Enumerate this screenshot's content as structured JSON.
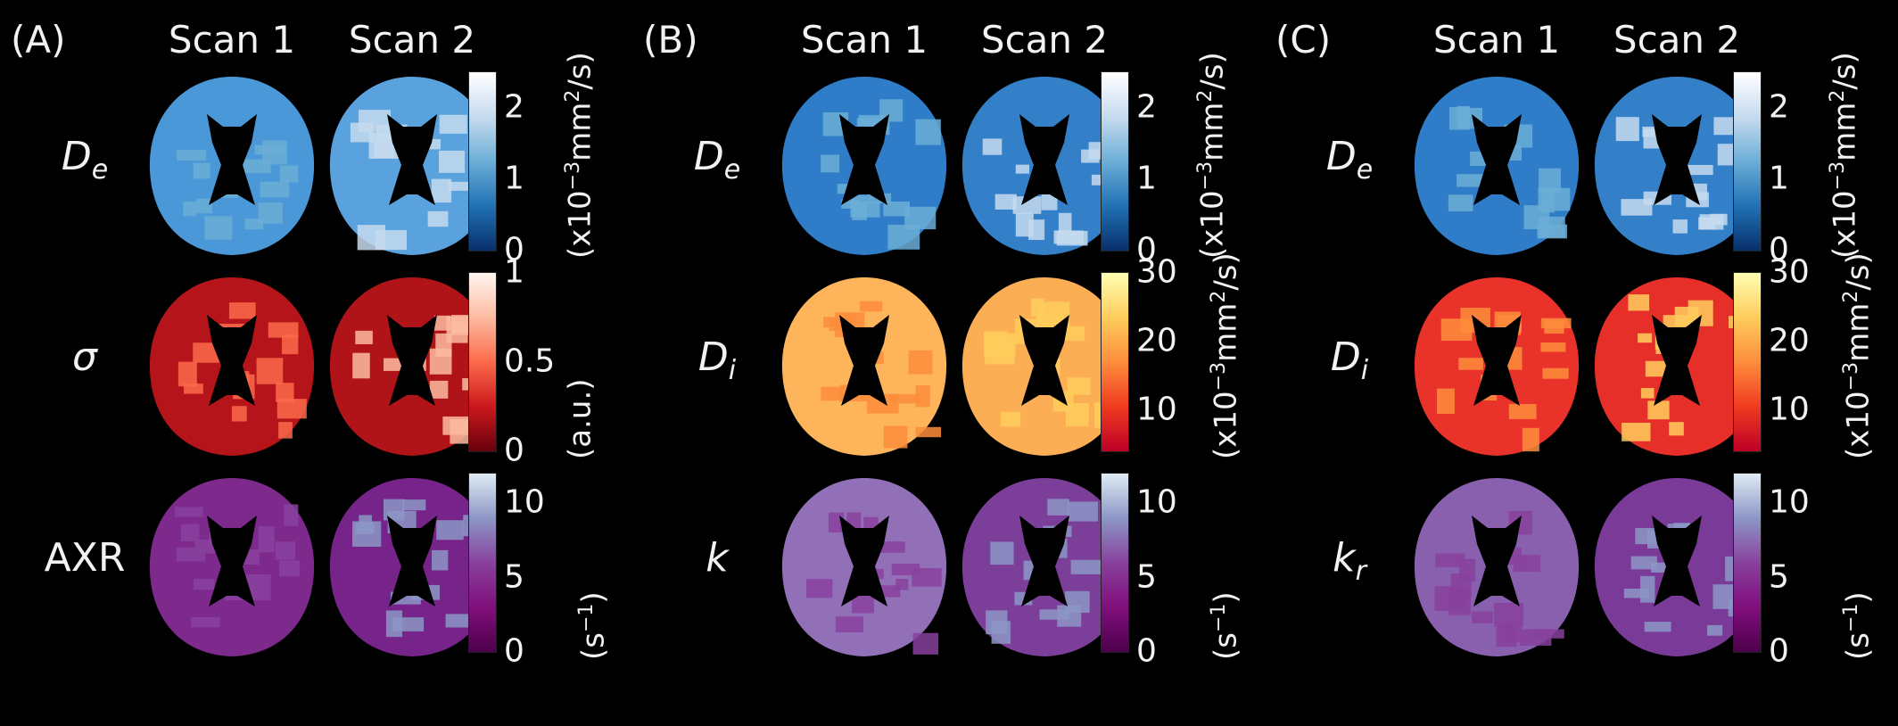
{
  "colors": {
    "background": "#000000"
  },
  "panels": [
    {
      "label": "(A)",
      "scan_labels": [
        "Scan 1",
        "Scan 2"
      ],
      "rows": [
        {
          "param_main": "D",
          "param_sub": "e",
          "italic": true,
          "colormap": [
            "#08306b",
            "#2171b5",
            "#6baed6",
            "#c6dbef",
            "#ffffff"
          ],
          "fill": [
            "#4b98d8",
            "#5aa2dd"
          ],
          "ticks": [
            "2",
            "1",
            "0"
          ],
          "tick_values": [
            2,
            1,
            0
          ],
          "range": [
            0,
            2.5
          ],
          "unit_pre": "(x10",
          "unit_exp": "−3",
          "unit_post": "mm",
          "unit_exp2": "2",
          "unit_tail": "/s)"
        },
        {
          "param_main": "σ",
          "param_sub": "",
          "italic": true,
          "colormap": [
            "#67000d",
            "#cb181d",
            "#fb6a4a",
            "#fcbba1",
            "#fff5f0"
          ],
          "fill": [
            "#b5141a",
            "#b01419"
          ],
          "ticks": [
            "1",
            "0.5",
            "0"
          ],
          "tick_values": [
            1,
            0.5,
            0
          ],
          "range": [
            0,
            1
          ],
          "unit_pre": "(a.u.)",
          "unit_exp": "",
          "unit_post": "",
          "unit_exp2": "",
          "unit_tail": ""
        },
        {
          "param_main": "AXR",
          "param_sub": "",
          "italic": false,
          "colormap": [
            "#4d004b",
            "#810f7c",
            "#88419d",
            "#8c96c6",
            "#e0ecf4"
          ],
          "fill": [
            "#7d2a8c",
            "#76248a"
          ],
          "ticks": [
            "10",
            "5",
            "0"
          ],
          "tick_values": [
            10,
            5,
            0
          ],
          "range": [
            0,
            12
          ],
          "unit_pre": "(s",
          "unit_exp": "−1",
          "unit_post": ")",
          "unit_exp2": "",
          "unit_tail": ""
        }
      ]
    },
    {
      "label": "(B)",
      "scan_labels": [
        "Scan 1",
        "Scan 2"
      ],
      "rows": [
        {
          "param_main": "D",
          "param_sub": "e",
          "italic": true,
          "colormap": [
            "#08306b",
            "#2171b5",
            "#6baed6",
            "#c6dbef",
            "#ffffff"
          ],
          "fill": [
            "#2f7cc8",
            "#3380c9"
          ],
          "ticks": [
            "2",
            "1",
            "0"
          ],
          "tick_values": [
            2,
            1,
            0
          ],
          "range": [
            0,
            2.5
          ],
          "unit_pre": "(x10",
          "unit_exp": "−3",
          "unit_post": "mm",
          "unit_exp2": "2",
          "unit_tail": "/s)"
        },
        {
          "param_main": "D",
          "param_sub": "i",
          "italic": true,
          "colormap": [
            "#bd0026",
            "#f03b20",
            "#fd8d3c",
            "#fecc5c",
            "#ffffb2"
          ],
          "fill": [
            "#fdb45a",
            "#fcae54"
          ],
          "ticks": [
            "30",
            "20",
            "10"
          ],
          "tick_values": [
            30,
            20,
            10
          ],
          "range": [
            4,
            30
          ],
          "unit_pre": "(x10",
          "unit_exp": "−3",
          "unit_post": "mm",
          "unit_exp2": "2",
          "unit_tail": "/s)"
        },
        {
          "param_main": "k",
          "param_sub": "",
          "italic": true,
          "colormap": [
            "#4d004b",
            "#810f7c",
            "#88419d",
            "#8c96c6",
            "#e0ecf4"
          ],
          "fill": [
            "#9170b8",
            "#7b3f9a"
          ],
          "ticks": [
            "10",
            "5",
            "0"
          ],
          "tick_values": [
            10,
            5,
            0
          ],
          "range": [
            0,
            12
          ],
          "unit_pre": "(s",
          "unit_exp": "−1",
          "unit_post": ")",
          "unit_exp2": "",
          "unit_tail": ""
        }
      ]
    },
    {
      "label": "(C)",
      "scan_labels": [
        "Scan 1",
        "Scan 2"
      ],
      "rows": [
        {
          "param_main": "D",
          "param_sub": "e",
          "italic": true,
          "colormap": [
            "#08306b",
            "#2171b5",
            "#6baed6",
            "#c6dbef",
            "#ffffff"
          ],
          "fill": [
            "#2f7cc8",
            "#3380c9"
          ],
          "ticks": [
            "2",
            "1",
            "0"
          ],
          "tick_values": [
            2,
            1,
            0
          ],
          "range": [
            0,
            2.5
          ],
          "unit_pre": "(x10",
          "unit_exp": "−3",
          "unit_post": "mm",
          "unit_exp2": "2",
          "unit_tail": "/s)"
        },
        {
          "param_main": "D",
          "param_sub": "i",
          "italic": true,
          "colormap": [
            "#bd0026",
            "#f03b20",
            "#fd8d3c",
            "#fecc5c",
            "#ffffb2"
          ],
          "fill": [
            "#e8322a",
            "#e62f28"
          ],
          "ticks": [
            "30",
            "20",
            "10"
          ],
          "tick_values": [
            30,
            20,
            10
          ],
          "range": [
            4,
            30
          ],
          "unit_pre": "(x10",
          "unit_exp": "−3",
          "unit_post": "mm",
          "unit_exp2": "2",
          "unit_tail": "/s)"
        },
        {
          "param_main": "k",
          "param_sub": "r",
          "italic": true,
          "colormap": [
            "#4d004b",
            "#810f7c",
            "#88419d",
            "#8c96c6",
            "#e0ecf4"
          ],
          "fill": [
            "#8860ae",
            "#7a3a98"
          ],
          "ticks": [
            "10",
            "5",
            "0"
          ],
          "tick_values": [
            10,
            5,
            0
          ],
          "range": [
            0,
            12
          ],
          "unit_pre": "(s",
          "unit_exp": "−1",
          "unit_post": ")",
          "unit_exp2": "",
          "unit_tail": ""
        }
      ]
    }
  ]
}
